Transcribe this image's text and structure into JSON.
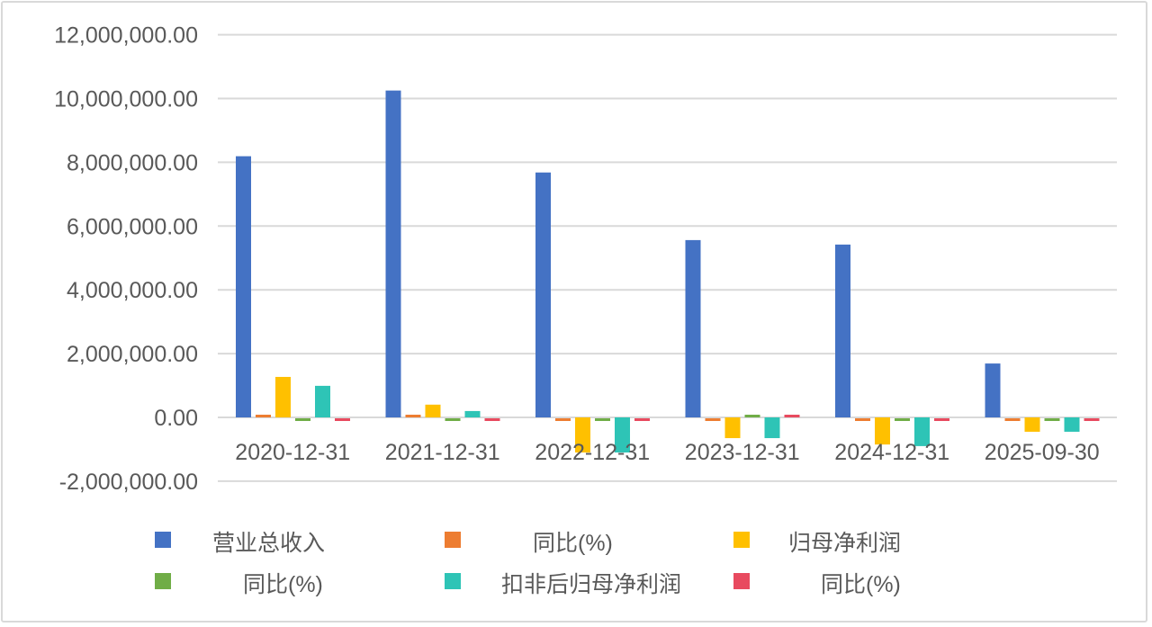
{
  "chart_data": {
    "type": "bar",
    "title": "",
    "xlabel": "",
    "ylabel": "",
    "categories": [
      "2020-12-31",
      "2021-12-31",
      "2022-12-31",
      "2023-12-31",
      "2024-12-31",
      "2025-09-30"
    ],
    "ylim": [
      -2000000,
      12000000
    ],
    "yticks": [
      -2000000,
      0,
      2000000,
      4000000,
      6000000,
      8000000,
      10000000,
      12000000
    ],
    "ytick_labels": [
      "-2,000,000.00",
      "0.00",
      "2,000,000.00",
      "4,000,000.00",
      "6,000,000.00",
      "8,000,000.00",
      "10,000,000.00",
      "12,000,000.00"
    ],
    "grid": true,
    "legend_position": "bottom",
    "series": [
      {
        "name": "营业总收入",
        "color": "#4472C4",
        "values": [
          8190000,
          10250000,
          7680000,
          5560000,
          5420000,
          1690000
        ]
      },
      {
        "name": "同比(%)",
        "color": "#ED7D31",
        "values": [
          10,
          25,
          -25,
          -28,
          -3,
          -12
        ]
      },
      {
        "name": "归母净利润",
        "color": "#FFC000",
        "values": [
          1270000,
          400000,
          -1100000,
          -650000,
          -850000,
          -450000
        ]
      },
      {
        "name": "同比(%)",
        "color": "#70AD47",
        "values": [
          -40,
          -70,
          -380,
          40,
          -30,
          -20
        ]
      },
      {
        "name": "扣非后归母净利润",
        "color": "#2EC4B6",
        "values": [
          990000,
          200000,
          -1100000,
          -650000,
          -900000,
          -450000
        ]
      },
      {
        "name": "同比(%)",
        "color": "#E84A5F",
        "values": [
          -50,
          -80,
          -600,
          40,
          -40,
          -30
        ]
      }
    ]
  },
  "legend": {
    "items": [
      {
        "label": "营业总收入",
        "color": "#4472C4"
      },
      {
        "label": "同比(%)",
        "color": "#ED7D31"
      },
      {
        "label": "归母净利润",
        "color": "#FFC000"
      },
      {
        "label": "同比(%)",
        "color": "#70AD47"
      },
      {
        "label": "扣非后归母净利润",
        "color": "#2EC4B6"
      },
      {
        "label": "同比(%)",
        "color": "#E84A5F"
      }
    ]
  }
}
